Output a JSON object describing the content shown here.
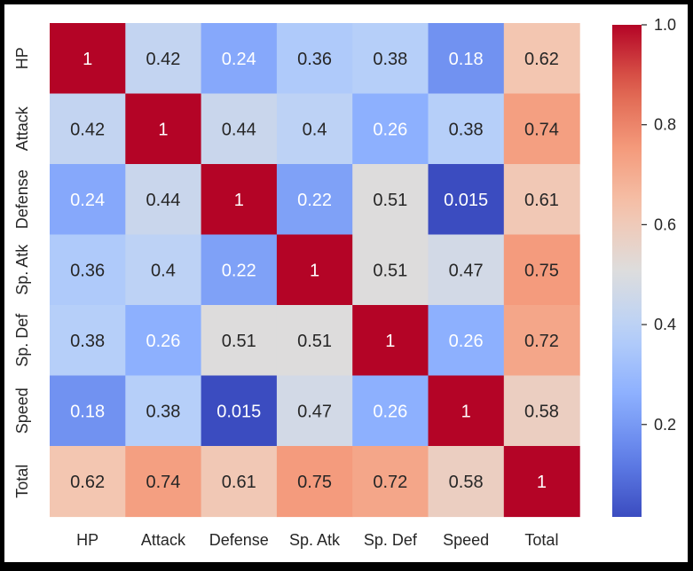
{
  "chart_data": {
    "type": "heatmap",
    "title": "",
    "xlabel": "",
    "ylabel": "",
    "x_categories": [
      "HP",
      "Attack",
      "Defense",
      "Sp. Atk",
      "Sp. Def",
      "Speed",
      "Total"
    ],
    "y_categories": [
      "HP",
      "Attack",
      "Defense",
      "Sp. Atk",
      "Sp. Def",
      "Speed",
      "Total"
    ],
    "values": [
      [
        1,
        0.42,
        0.24,
        0.36,
        0.38,
        0.18,
        0.62
      ],
      [
        0.42,
        1,
        0.44,
        0.4,
        0.26,
        0.38,
        0.74
      ],
      [
        0.24,
        0.44,
        1,
        0.22,
        0.51,
        0.015,
        0.61
      ],
      [
        0.36,
        0.4,
        0.22,
        1,
        0.51,
        0.47,
        0.75
      ],
      [
        0.38,
        0.26,
        0.51,
        0.51,
        1,
        0.26,
        0.72
      ],
      [
        0.18,
        0.38,
        0.015,
        0.47,
        0.26,
        1,
        0.58
      ],
      [
        0.62,
        0.74,
        0.61,
        0.75,
        0.72,
        0.58,
        1
      ]
    ],
    "annotations": [
      [
        "1",
        "0.42",
        "0.24",
        "0.36",
        "0.38",
        "0.18",
        "0.62"
      ],
      [
        "0.42",
        "1",
        "0.44",
        "0.4",
        "0.26",
        "0.38",
        "0.74"
      ],
      [
        "0.24",
        "0.44",
        "1",
        "0.22",
        "0.51",
        "0.015",
        "0.61"
      ],
      [
        "0.36",
        "0.4",
        "0.22",
        "1",
        "0.51",
        "0.47",
        "0.75"
      ],
      [
        "0.38",
        "0.26",
        "0.51",
        "0.51",
        "1",
        "0.26",
        "0.72"
      ],
      [
        "0.18",
        "0.38",
        "0.015",
        "0.47",
        "0.26",
        "1",
        "0.58"
      ],
      [
        "0.62",
        "0.74",
        "0.61",
        "0.75",
        "0.72",
        "0.58",
        "1"
      ]
    ],
    "colormap": "coolwarm",
    "vmin": 0.015,
    "vmax": 1,
    "colorbar": {
      "ticks": [
        0.2,
        0.4,
        0.6,
        0.8,
        1.0
      ],
      "tick_labels": [
        "0.2",
        "0.4",
        "0.6",
        "0.8",
        "1.0"
      ],
      "placement": "right"
    },
    "colors": {
      "low": "#3b4cc0",
      "mid": "#dddddd",
      "high": "#b40426",
      "text_light": "#ffffff",
      "text_dark": "#262626",
      "axis_text": "#262626",
      "background": "#ffffff",
      "frame": "#000000"
    }
  }
}
